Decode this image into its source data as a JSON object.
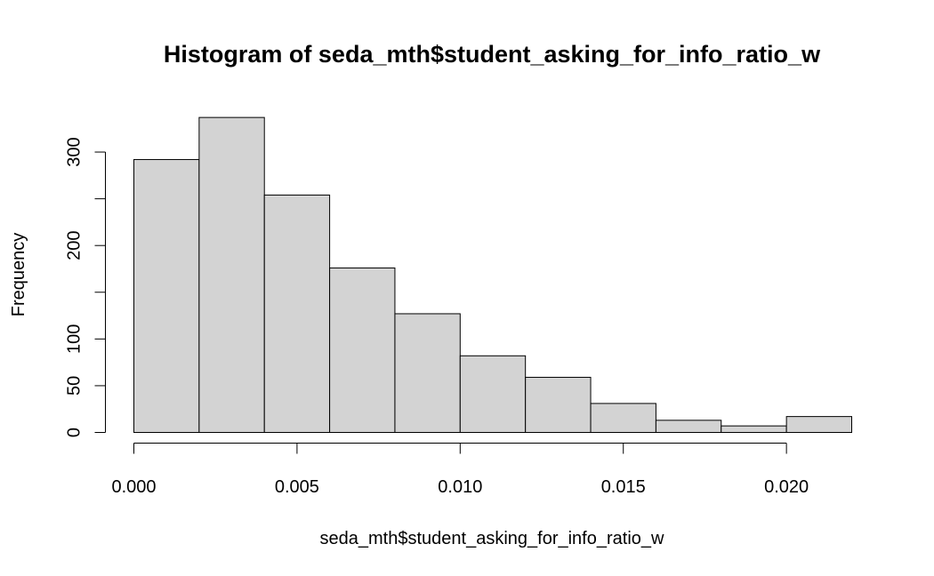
{
  "chart_data": {
    "type": "bar",
    "title": "Histogram of seda_mth$student_asking_for_info_ratio_w",
    "xlabel": "seda_mth$student_asking_for_info_ratio_w",
    "ylabel": "Frequency",
    "bar_color": "#d3d3d3",
    "bins": [
      {
        "x0": 0.0,
        "x1": 0.002,
        "count": 292
      },
      {
        "x0": 0.002,
        "x1": 0.004,
        "count": 337
      },
      {
        "x0": 0.004,
        "x1": 0.006,
        "count": 254
      },
      {
        "x0": 0.006,
        "x1": 0.008,
        "count": 176
      },
      {
        "x0": 0.008,
        "x1": 0.01,
        "count": 127
      },
      {
        "x0": 0.01,
        "x1": 0.012,
        "count": 82
      },
      {
        "x0": 0.012,
        "x1": 0.014,
        "count": 59
      },
      {
        "x0": 0.014,
        "x1": 0.016,
        "count": 31
      },
      {
        "x0": 0.016,
        "x1": 0.018,
        "count": 13
      },
      {
        "x0": 0.018,
        "x1": 0.02,
        "count": 7
      },
      {
        "x0": 0.02,
        "x1": 0.022,
        "count": 17
      }
    ],
    "xlim": [
      0,
      0.022
    ],
    "ylim": [
      0,
      337
    ],
    "x_ticks": [
      {
        "value": 0.0,
        "label": "0.000"
      },
      {
        "value": 0.005,
        "label": "0.005"
      },
      {
        "value": 0.01,
        "label": "0.010"
      },
      {
        "value": 0.015,
        "label": "0.015"
      },
      {
        "value": 0.02,
        "label": "0.020"
      }
    ],
    "y_ticks": [
      {
        "value": 0,
        "label": "0"
      },
      {
        "value": 50,
        "label": "50"
      },
      {
        "value": 100,
        "label": "100"
      },
      {
        "value": 150,
        "label": ""
      },
      {
        "value": 200,
        "label": "200"
      },
      {
        "value": 250,
        "label": ""
      },
      {
        "value": 300,
        "label": "300"
      }
    ],
    "grid": false
  }
}
